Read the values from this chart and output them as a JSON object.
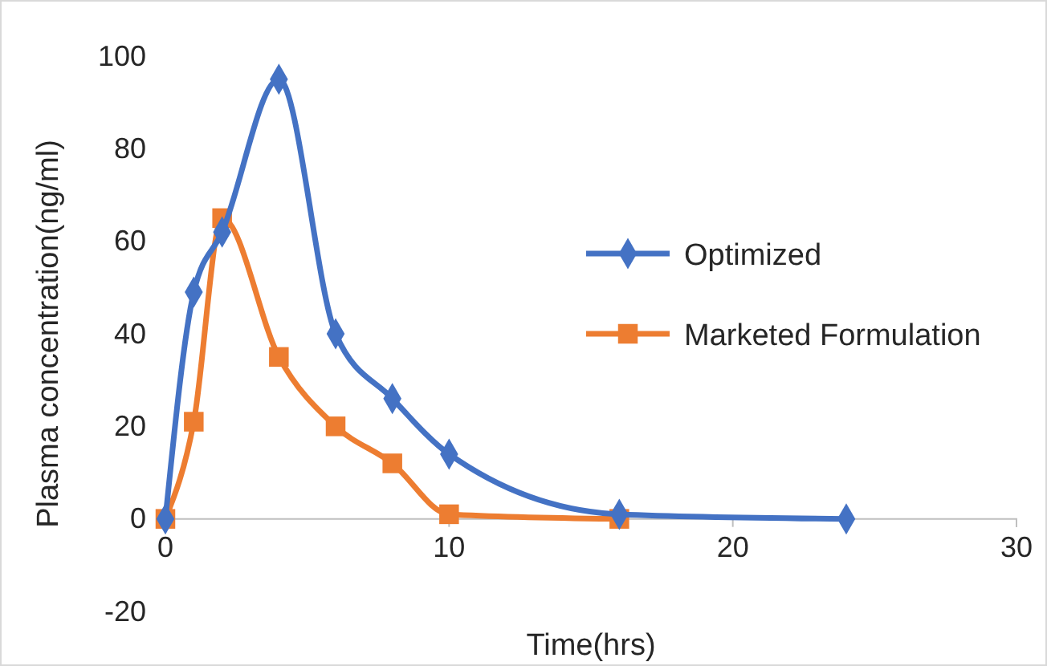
{
  "chart_data": {
    "type": "line",
    "xlabel": "Time(hrs)",
    "ylabel": "Plasma concentration(ng/ml)",
    "xlim": [
      0,
      30
    ],
    "xticks": [
      0,
      10,
      20,
      30
    ],
    "ylim": [
      -20,
      100
    ],
    "yticks": [
      -20,
      0,
      20,
      40,
      60,
      80,
      100
    ],
    "grid": false,
    "legend": "right",
    "series": [
      {
        "name": "Optimized",
        "color": "#4472c4",
        "marker": "diamond",
        "x": [
          0,
          1,
          2,
          4,
          6,
          8,
          10,
          16,
          24
        ],
        "values": [
          0,
          49,
          62,
          95,
          40,
          26,
          14,
          1,
          0
        ]
      },
      {
        "name": "Marketed Formulation",
        "color": "#ed7d31",
        "marker": "square",
        "x": [
          0,
          1,
          2,
          4,
          6,
          8,
          10,
          16
        ],
        "values": [
          0,
          21,
          65,
          35,
          20,
          12,
          1,
          0
        ]
      }
    ]
  }
}
